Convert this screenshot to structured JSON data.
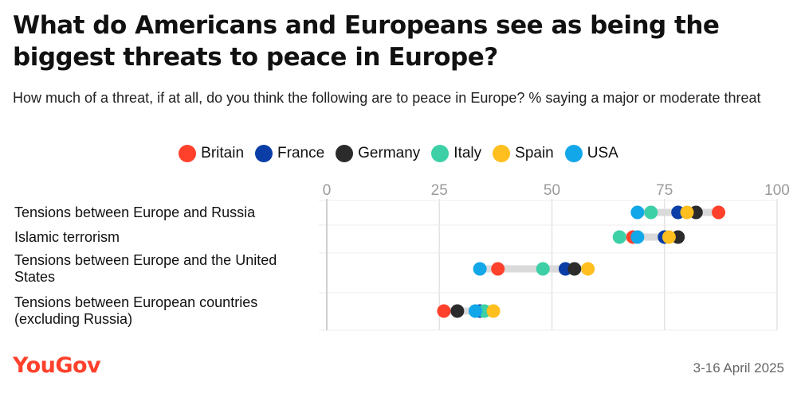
{
  "title": "What do Americans and Europeans see as being the biggest threats to peace in Europe?",
  "subtitle": "How much of a threat, if at all, do you think the following are to peace in Europe? % saying a major or moderate threat",
  "source_date": "3-16 April 2025",
  "logo_text": "YouGov",
  "colors": {
    "Britain": "#ff412c",
    "France": "#0a3da6",
    "Germany": "#2b2b2b",
    "Italy": "#3dd0a6",
    "Spain": "#ffbf1f",
    "USA": "#12a7e8"
  },
  "chart_data": {
    "type": "scatter",
    "title": "What do Americans and Europeans see as being the biggest threats to peace in Europe?",
    "subtitle": "How much of a threat, if at all, do you think the following are to peace in Europe? % saying a major or moderate threat",
    "xlim": [
      0,
      100
    ],
    "xticks": [
      0,
      25,
      50,
      75,
      100
    ],
    "grid": true,
    "legend_position": "top-center",
    "series": [
      {
        "name": "Britain",
        "values": [
          87,
          68,
          38,
          26
        ]
      },
      {
        "name": "France",
        "values": [
          78,
          75,
          53,
          34
        ]
      },
      {
        "name": "Germany",
        "values": [
          82,
          78,
          55,
          29
        ]
      },
      {
        "name": "Italy",
        "values": [
          72,
          65,
          48,
          35
        ]
      },
      {
        "name": "Spain",
        "values": [
          80,
          76,
          58,
          37
        ]
      },
      {
        "name": "USA",
        "values": [
          69,
          69,
          34,
          33
        ]
      }
    ],
    "categories": [
      "Tensions between Europe and Russia",
      "Islamic terrorism",
      "Tensions between Europe and the United States",
      "Tensions between European countries (excluding Russia)"
    ]
  }
}
